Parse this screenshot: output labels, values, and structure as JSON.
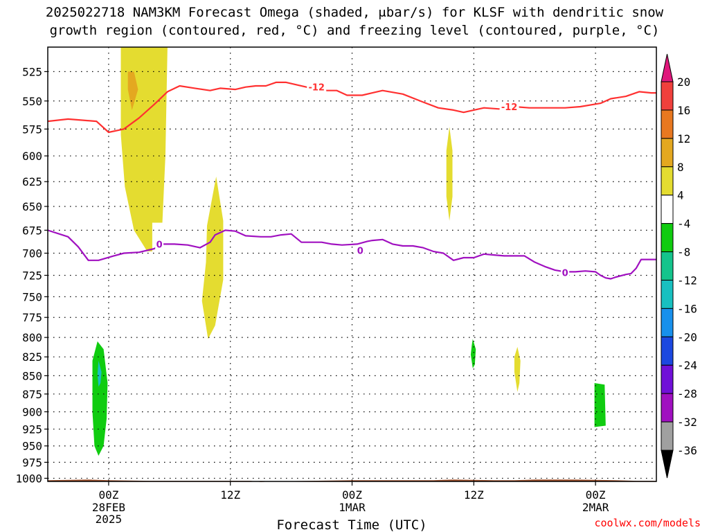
{
  "chart_data": {
    "type": "heatmap",
    "title_line1": "2025022718 NAM3KM Forecast Omega (shaded, μbar/s) for KLSF with dendritic snow",
    "title_line2": "growth region (contoured, red, °C) and freezing level (contoured, purple, °C)",
    "xlabel": "Forecast Time (UTC)",
    "credit": "coolwx.com/models",
    "x_unit": "hours since 2025-02-27 18Z",
    "xlim": [
      0,
      60
    ],
    "ylim": [
      1005,
      505
    ],
    "y_ticks": [
      525,
      550,
      575,
      600,
      625,
      650,
      675,
      700,
      725,
      750,
      775,
      800,
      825,
      850,
      875,
      900,
      925,
      950,
      975,
      1000
    ],
    "x_ticks": [
      {
        "x": 6,
        "label": "00Z",
        "sub1": "28FEB",
        "sub2": "2025"
      },
      {
        "x": 18,
        "label": "12Z",
        "sub1": "",
        "sub2": ""
      },
      {
        "x": 30,
        "label": "00Z",
        "sub1": "1MAR",
        "sub2": ""
      },
      {
        "x": 42,
        "label": "12Z",
        "sub1": "",
        "sub2": ""
      },
      {
        "x": 54,
        "label": "00Z",
        "sub1": "2MAR",
        "sub2": ""
      }
    ],
    "grid": true,
    "colorbar": {
      "placement": "right",
      "labels": [
        "20",
        "16",
        "12",
        "8",
        "4",
        "-4",
        "-8",
        "-12",
        "-16",
        "-20",
        "-24",
        "-28",
        "-32",
        "-36"
      ],
      "bins": [
        {
          "color": "#e0187c"
        },
        {
          "color": "#f0403c"
        },
        {
          "color": "#e87820"
        },
        {
          "color": "#e4a820"
        },
        {
          "color": "#e4dc30"
        },
        {
          "color": "#ffffff"
        },
        {
          "color": "#10cc10"
        },
        {
          "color": "#14c48c"
        },
        {
          "color": "#18c0c0"
        },
        {
          "color": "#1890ec"
        },
        {
          "color": "#1c48e0"
        },
        {
          "color": "#7010d8"
        },
        {
          "color": "#a010c0"
        },
        {
          "color": "#a0a0a0"
        },
        {
          "color": "#000000"
        }
      ]
    },
    "omega_areas": [
      {
        "color": "#e4dc30",
        "points": [
          [
            7.2,
            505
          ],
          [
            11.8,
            505
          ],
          [
            11.6,
            600
          ],
          [
            11.3,
            667
          ],
          [
            10.3,
            667
          ],
          [
            10.3,
            698
          ],
          [
            9.8,
            698
          ],
          [
            8.5,
            675
          ],
          [
            7.6,
            630
          ],
          [
            7.2,
            580
          ]
        ]
      },
      {
        "color": "#e4a820",
        "points": [
          [
            7.9,
            525
          ],
          [
            8.5,
            525
          ],
          [
            8.9,
            540
          ],
          [
            8.3,
            558
          ],
          [
            7.9,
            540
          ]
        ]
      },
      {
        "color": "#e4dc30",
        "points": [
          [
            15.8,
            802
          ],
          [
            15.2,
            755
          ],
          [
            15.6,
            710
          ],
          [
            15.7,
            670
          ],
          [
            16.6,
            620
          ],
          [
            17.3,
            665
          ],
          [
            17.3,
            730
          ],
          [
            16.5,
            785
          ]
        ]
      },
      {
        "color": "#e4dc30",
        "points": [
          [
            39.6,
            573
          ],
          [
            39.9,
            595
          ],
          [
            39.9,
            640
          ],
          [
            39.6,
            665
          ],
          [
            39.3,
            640
          ],
          [
            39.3,
            595
          ]
        ]
      },
      {
        "color": "#e4dc30",
        "points": [
          [
            46.3,
            812
          ],
          [
            46.6,
            830
          ],
          [
            46.5,
            860
          ],
          [
            46.3,
            872
          ],
          [
            46.0,
            845
          ],
          [
            46.0,
            825
          ]
        ]
      },
      {
        "color": "#10cc10",
        "points": [
          [
            41.9,
            802
          ],
          [
            42.2,
            815
          ],
          [
            42.1,
            835
          ],
          [
            41.9,
            840
          ],
          [
            41.7,
            822
          ],
          [
            41.8,
            810
          ]
        ]
      },
      {
        "color": "#10cc10",
        "points": [
          [
            4.9,
            805
          ],
          [
            5.5,
            815
          ],
          [
            5.9,
            860
          ],
          [
            5.8,
            910
          ],
          [
            5.5,
            950
          ],
          [
            5.0,
            965
          ],
          [
            4.6,
            950
          ],
          [
            4.4,
            900
          ],
          [
            4.4,
            830
          ]
        ]
      },
      {
        "color": "#18c0c0",
        "points": [
          [
            5.0,
            830
          ],
          [
            5.3,
            845
          ],
          [
            5.2,
            860
          ],
          [
            5.0,
            865
          ],
          [
            4.9,
            848
          ]
        ]
      },
      {
        "color": "#10cc10",
        "points": [
          [
            53.9,
            860
          ],
          [
            54.9,
            862
          ],
          [
            55.0,
            920
          ],
          [
            53.9,
            922
          ]
        ]
      }
    ],
    "terrain": {
      "color": "#a0522d",
      "top": [
        [
          0,
          1003
        ],
        [
          4,
          1002
        ],
        [
          6,
          1003
        ],
        [
          10,
          1004
        ],
        [
          20,
          1004
        ],
        [
          21,
          1006
        ],
        [
          22,
          1005
        ],
        [
          26,
          1004
        ],
        [
          30,
          1003
        ],
        [
          38,
          1003
        ],
        [
          40,
          1002
        ],
        [
          44,
          1003
        ],
        [
          46,
          1003
        ],
        [
          48,
          1002
        ],
        [
          52,
          1002
        ],
        [
          56,
          1003
        ],
        [
          58,
          1004
        ],
        [
          60,
          1004
        ]
      ]
    },
    "series": [
      {
        "name": "-12",
        "color": "#ff3030",
        "label_points": [
          [
            26.5,
            538
          ],
          [
            45.5,
            555
          ]
        ],
        "points": [
          [
            0,
            568
          ],
          [
            2,
            566
          ],
          [
            4.8,
            568
          ],
          [
            6,
            578
          ],
          [
            7.5,
            575
          ],
          [
            9,
            565
          ],
          [
            10.5,
            553
          ],
          [
            11.8,
            542
          ],
          [
            13,
            537
          ],
          [
            14.5,
            539
          ],
          [
            16,
            541
          ],
          [
            17,
            539
          ],
          [
            18.5,
            540
          ],
          [
            19.5,
            538
          ],
          [
            20.5,
            537
          ],
          [
            21.5,
            537
          ],
          [
            22.5,
            534
          ],
          [
            23.5,
            534
          ],
          [
            24.5,
            536
          ],
          [
            25.5,
            538
          ],
          [
            26.5,
            539
          ],
          [
            27.5,
            541
          ],
          [
            28.5,
            541
          ],
          [
            29.5,
            545
          ],
          [
            31,
            545
          ],
          [
            32,
            543
          ],
          [
            33,
            541
          ],
          [
            35,
            544
          ],
          [
            37,
            551
          ],
          [
            38.5,
            556
          ],
          [
            40,
            558
          ],
          [
            41,
            560
          ],
          [
            42,
            558
          ],
          [
            43,
            556
          ],
          [
            44.5,
            557
          ],
          [
            46,
            555
          ],
          [
            47.5,
            556
          ],
          [
            49,
            556
          ],
          [
            51,
            556
          ],
          [
            52.5,
            555
          ],
          [
            54.5,
            552
          ],
          [
            55.5,
            548
          ],
          [
            57,
            546
          ],
          [
            58.3,
            542
          ],
          [
            59.5,
            543
          ],
          [
            60,
            543
          ]
        ]
      },
      {
        "name": "0",
        "color": "#a010c0",
        "label_points": [
          [
            11,
            690
          ],
          [
            30.8,
            697
          ],
          [
            51,
            722
          ]
        ],
        "points": [
          [
            0,
            675
          ],
          [
            2,
            682
          ],
          [
            3,
            693
          ],
          [
            4,
            708
          ],
          [
            5,
            708
          ],
          [
            6.5,
            703
          ],
          [
            7.5,
            700
          ],
          [
            9,
            699
          ],
          [
            10.5,
            695
          ],
          [
            11.2,
            690
          ],
          [
            12.5,
            690
          ],
          [
            13.8,
            691
          ],
          [
            15,
            694
          ],
          [
            16,
            688
          ],
          [
            16.5,
            680
          ],
          [
            17.5,
            675
          ],
          [
            18.5,
            676
          ],
          [
            19.5,
            681
          ],
          [
            21,
            682
          ],
          [
            22,
            682
          ],
          [
            23,
            680
          ],
          [
            24,
            679
          ],
          [
            25,
            688
          ],
          [
            26,
            688
          ],
          [
            27,
            688
          ],
          [
            28,
            690
          ],
          [
            29,
            691
          ],
          [
            30.5,
            690
          ],
          [
            31.5,
            687
          ],
          [
            32,
            686
          ],
          [
            33,
            685
          ],
          [
            34,
            690
          ],
          [
            35,
            692
          ],
          [
            36,
            692
          ],
          [
            37,
            694
          ],
          [
            38,
            698
          ],
          [
            39,
            700
          ],
          [
            40,
            708
          ],
          [
            41,
            705
          ],
          [
            42,
            705
          ],
          [
            43,
            701
          ],
          [
            44,
            702
          ],
          [
            45,
            703
          ],
          [
            47,
            703
          ],
          [
            48,
            710
          ],
          [
            49,
            715
          ],
          [
            50,
            719
          ],
          [
            51,
            721
          ],
          [
            52,
            721
          ],
          [
            53,
            720
          ],
          [
            54,
            721
          ],
          [
            54.5,
            725
          ],
          [
            55,
            728
          ],
          [
            55.5,
            729
          ],
          [
            56,
            727
          ],
          [
            57,
            724
          ],
          [
            57.5,
            723
          ],
          [
            58,
            717
          ],
          [
            58.5,
            707
          ],
          [
            59.2,
            707
          ],
          [
            60,
            707
          ]
        ]
      }
    ]
  }
}
